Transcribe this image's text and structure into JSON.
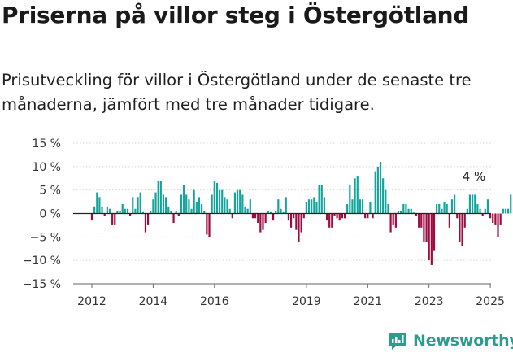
{
  "title": "Priserna på villor steg i Östergötland",
  "subtitle": "Prisutveckling för villor i Östergötland under de senaste tre månaderna, jämfört med tre månader tidigare.",
  "brand": "Newsworthy",
  "colors": {
    "positive": "#12a59c",
    "negative": "#9e0b3f",
    "brand": "#2a9d8f"
  },
  "chart_data": {
    "type": "bar",
    "annotation": "4 %",
    "ylim": [
      -15,
      15
    ],
    "yticks": [
      15,
      10,
      5,
      0,
      -5,
      -10,
      -15
    ],
    "ytick_labels": [
      "15 %",
      "10 %",
      "5 %",
      "0 %",
      "−5 %",
      "−10 %",
      "−15 %"
    ],
    "xticks": [
      2012,
      2014,
      2016,
      2019,
      2021,
      2023,
      2025
    ],
    "grid": true,
    "x": [
      2012.0,
      2012.083,
      2012.167,
      2012.25,
      2012.333,
      2012.417,
      2012.5,
      2012.583,
      2012.667,
      2012.75,
      2012.833,
      2012.917,
      2013.0,
      2013.083,
      2013.167,
      2013.25,
      2013.333,
      2013.417,
      2013.5,
      2013.583,
      2013.667,
      2013.75,
      2013.833,
      2013.917,
      2014.0,
      2014.083,
      2014.167,
      2014.25,
      2014.333,
      2014.417,
      2014.5,
      2014.583,
      2014.667,
      2014.75,
      2014.833,
      2014.917,
      2015.0,
      2015.083,
      2015.167,
      2015.25,
      2015.333,
      2015.417,
      2015.5,
      2015.583,
      2015.667,
      2015.75,
      2015.833,
      2015.917,
      2016.0,
      2016.083,
      2016.167,
      2016.25,
      2016.333,
      2016.417,
      2016.5,
      2016.583,
      2016.667,
      2016.75,
      2016.833,
      2016.917,
      2017.0,
      2017.083,
      2017.167,
      2017.25,
      2017.333,
      2017.417,
      2017.5,
      2017.583,
      2017.667,
      2017.75,
      2017.833,
      2017.917,
      2018.0,
      2018.083,
      2018.167,
      2018.25,
      2018.333,
      2018.417,
      2018.5,
      2018.583,
      2018.667,
      2018.75,
      2018.833,
      2018.917,
      2019.0,
      2019.083,
      2019.167,
      2019.25,
      2019.333,
      2019.417,
      2019.5,
      2019.583,
      2019.667,
      2019.75,
      2019.833,
      2019.917,
      2020.0,
      2020.083,
      2020.167,
      2020.25,
      2020.333,
      2020.417,
      2020.5,
      2020.583,
      2020.667,
      2020.75,
      2020.833,
      2020.917,
      2021.0,
      2021.083,
      2021.167,
      2021.25,
      2021.333,
      2021.417,
      2021.5,
      2021.583,
      2021.667,
      2021.75,
      2021.833,
      2021.917,
      2022.0,
      2022.083,
      2022.167,
      2022.25,
      2022.333,
      2022.417,
      2022.5,
      2022.583,
      2022.667,
      2022.75,
      2022.833,
      2022.917,
      2023.0,
      2023.083,
      2023.167,
      2023.25,
      2023.333,
      2023.417,
      2023.5,
      2023.583,
      2023.667,
      2023.75,
      2023.833,
      2023.917,
      2024.0,
      2024.083,
      2024.167,
      2024.25,
      2024.333,
      2024.417,
      2024.5,
      2024.583,
      2024.667,
      2024.75,
      2024.833,
      2024.917,
      2025.0,
      2025.083,
      2025.167,
      2025.25,
      2025.333,
      2025.417,
      2025.5,
      2025.583,
      2025.667
    ],
    "values": [
      -1.5,
      1.5,
      4.5,
      3.5,
      1.5,
      -0.5,
      1.5,
      1.0,
      -2.5,
      -2.5,
      0.5,
      0.5,
      2.0,
      1.0,
      1.0,
      -0.5,
      3.5,
      1.0,
      3.5,
      4.5,
      0.3,
      -4.0,
      -2.5,
      0.5,
      3.0,
      4.5,
      7.0,
      7.0,
      4.0,
      3.5,
      1.5,
      0.5,
      -2.0,
      0.5,
      -0.5,
      4.0,
      6.0,
      4.0,
      3.0,
      1.0,
      5.0,
      2.5,
      3.5,
      2.0,
      0.5,
      -4.5,
      -5.0,
      4.0,
      7.0,
      6.5,
      5.0,
      5.0,
      3.5,
      3.0,
      1.0,
      -1.0,
      4.5,
      5.0,
      5.0,
      4.0,
      1.5,
      1.0,
      3.0,
      -1.0,
      -1.0,
      -2.0,
      -4.0,
      -3.5,
      -2.0,
      0.5,
      0.3,
      -1.5,
      0.5,
      3.0,
      1.0,
      0.3,
      3.5,
      -1.5,
      -3.0,
      -1.0,
      -3.5,
      -6.0,
      -4.0,
      -1.0,
      2.5,
      3.0,
      3.0,
      3.5,
      2.5,
      6.0,
      6.0,
      3.5,
      -1.5,
      -3.0,
      -3.0,
      -0.5,
      -1.0,
      -1.5,
      -1.0,
      -1.0,
      2.0,
      6.0,
      3.0,
      7.5,
      8.0,
      3.0,
      3.0,
      -1.0,
      -1.0,
      2.5,
      -1.0,
      9.0,
      10.0,
      11.0,
      7.5,
      5.0,
      2.0,
      -4.0,
      -2.5,
      -3.0,
      0.5,
      0.5,
      2.0,
      2.0,
      1.0,
      1.0,
      0.2,
      -0.5,
      -3.0,
      -3.0,
      -6.0,
      -6.0,
      -10.0,
      -11.0,
      -8.0,
      2.0,
      2.0,
      1.0,
      2.5,
      2.0,
      -3.0,
      3.0,
      4.0,
      -1.0,
      -6.0,
      -7.0,
      -3.0,
      1.0,
      4.0,
      4.0,
      4.0,
      2.0,
      1.0,
      -0.5,
      1.0,
      3.0,
      -1.0,
      -2.0,
      -2.5,
      -5.0,
      -2.5,
      1.0,
      1.0,
      1.0,
      4.0
    ]
  }
}
